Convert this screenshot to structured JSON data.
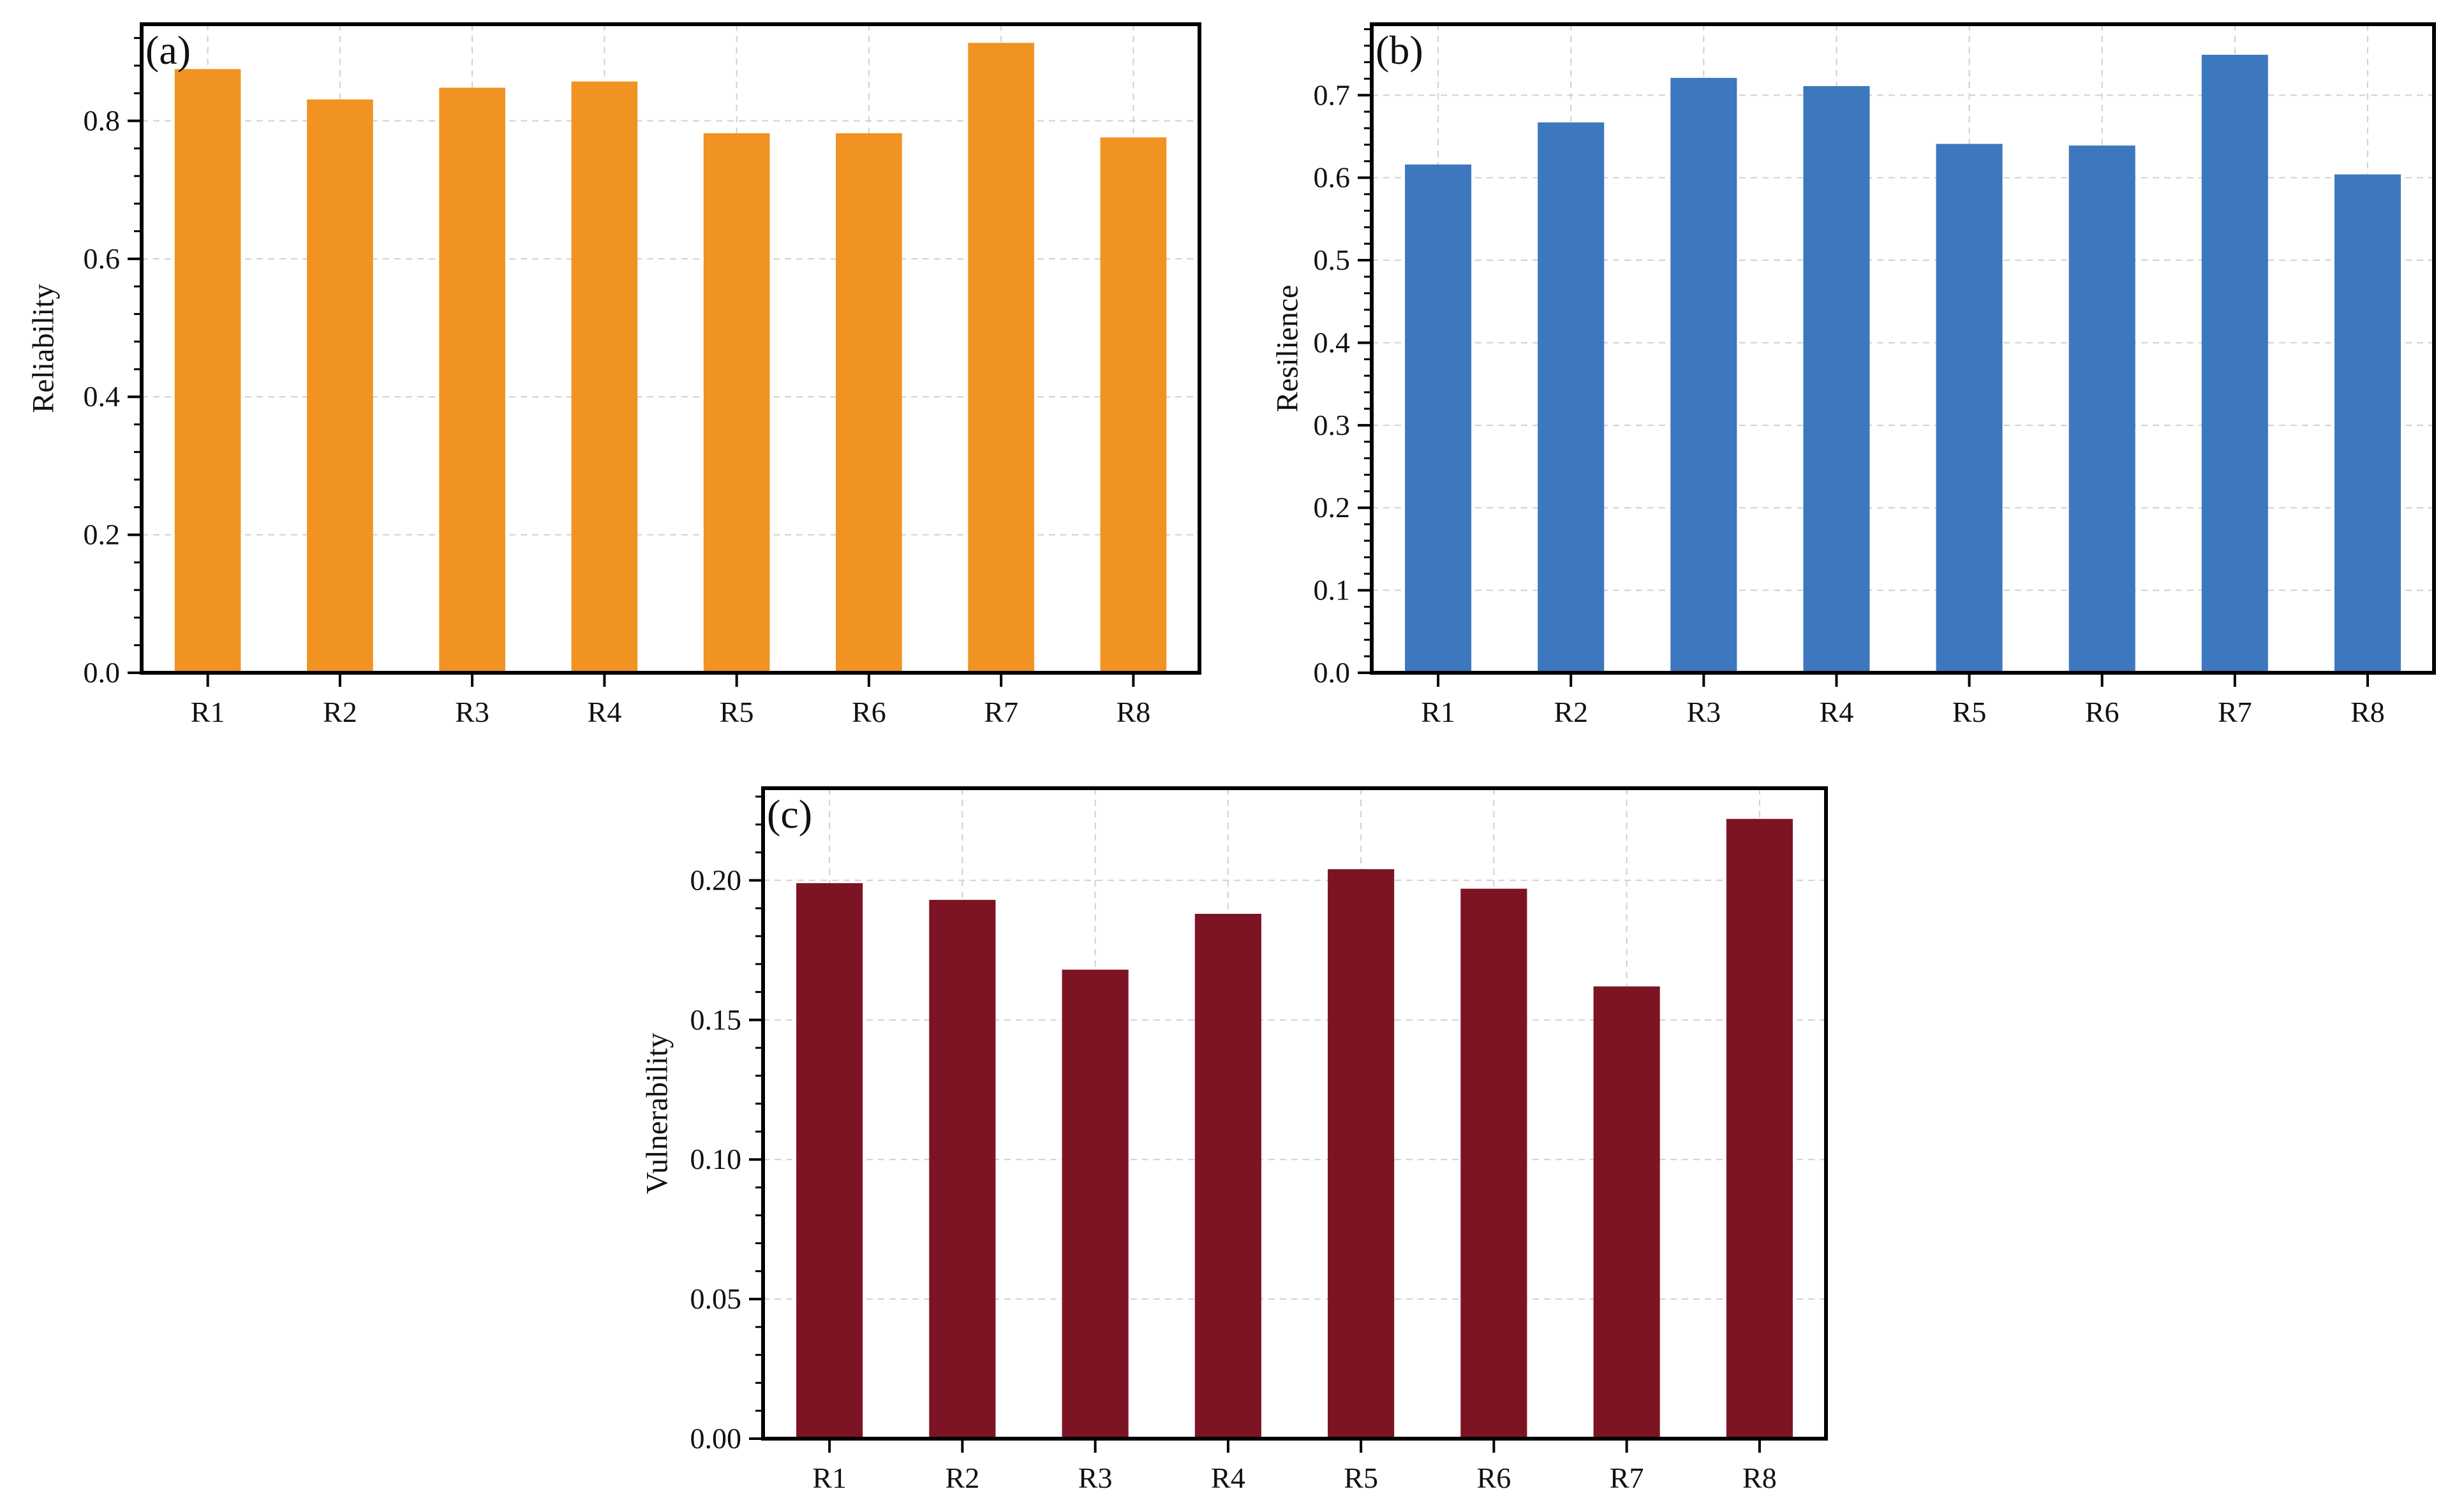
{
  "chart_data": [
    {
      "type": "bar",
      "panel_label": "(a)",
      "categories": [
        "R1",
        "R2",
        "R3",
        "R4",
        "R5",
        "R6",
        "R7",
        "R8"
      ],
      "values": [
        0.875,
        0.831,
        0.848,
        0.857,
        0.782,
        0.782,
        0.913,
        0.776
      ],
      "ylabel": "Reliability",
      "xlabel": "",
      "ylim": [
        0,
        0.94
      ],
      "yticks": [
        0.0,
        0.2,
        0.4,
        0.6,
        0.8
      ],
      "ytick_labels": [
        "0.0",
        "0.2",
        "0.4",
        "0.6",
        "0.8"
      ],
      "minor_step": 0.04,
      "color": "#F09322",
      "grid": true
    },
    {
      "type": "bar",
      "panel_label": "(b)",
      "categories": [
        "R1",
        "R2",
        "R3",
        "R4",
        "R5",
        "R6",
        "R7",
        "R8"
      ],
      "values": [
        0.616,
        0.667,
        0.721,
        0.711,
        0.641,
        0.639,
        0.749,
        0.604
      ],
      "ylabel": "Resilience",
      "xlabel": "",
      "ylim": [
        0,
        0.786
      ],
      "yticks": [
        0.0,
        0.1,
        0.2,
        0.3,
        0.4,
        0.5,
        0.6,
        0.7
      ],
      "ytick_labels": [
        "0.0",
        "0.1",
        "0.2",
        "0.3",
        "0.4",
        "0.5",
        "0.6",
        "0.7"
      ],
      "minor_step": 0.02,
      "color": "#3D78BF",
      "grid": true
    },
    {
      "type": "bar",
      "panel_label": "(c)",
      "categories": [
        "R1",
        "R2",
        "R3",
        "R4",
        "R5",
        "R6",
        "R7",
        "R8"
      ],
      "values": [
        0.199,
        0.193,
        0.168,
        0.188,
        0.204,
        0.197,
        0.162,
        0.222
      ],
      "ylabel": "Vulnerability",
      "xlabel": "",
      "ylim": [
        0,
        0.233
      ],
      "yticks": [
        0.0,
        0.05,
        0.1,
        0.15,
        0.2
      ],
      "ytick_labels": [
        "0.00",
        "0.05",
        "0.10",
        "0.15",
        "0.20"
      ],
      "minor_step": 0.01,
      "color": "#7D1424",
      "grid": true
    }
  ]
}
